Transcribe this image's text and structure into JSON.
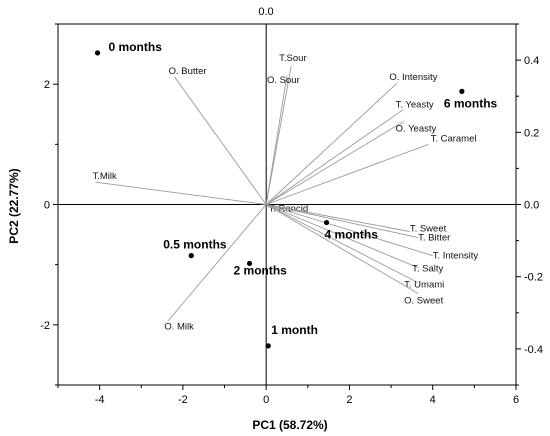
{
  "chart_data": {
    "type": "scatter",
    "subtype": "pca-biplot",
    "xlabel": "PC1 (58.72%)",
    "ylabel": "PC2 (22.77%)",
    "top_axis_label": "0.0",
    "xlim": [
      -5,
      6
    ],
    "ylim": [
      -3,
      3
    ],
    "right_axis_lim": [
      -0.5,
      0.5
    ],
    "x_ticks": [
      -4,
      -2,
      0,
      2,
      4,
      6
    ],
    "y_ticks": [
      -2,
      0,
      2
    ],
    "right_ticks": [
      -0.4,
      -0.2,
      0.0,
      0.2,
      0.4
    ],
    "right_tick_labels": [
      "-0.4",
      "-0.2",
      "0.0",
      "0.2",
      "0.4"
    ],
    "grid": false,
    "scores": [
      {
        "label": "0 months",
        "x": -4.05,
        "y": 2.52
      },
      {
        "label": "0.5 months",
        "x": -1.8,
        "y": -0.85
      },
      {
        "label": "2 months",
        "x": -0.4,
        "y": -0.98
      },
      {
        "label": "1 month",
        "x": 0.05,
        "y": -2.35
      },
      {
        "label": "4 months",
        "x": 1.45,
        "y": -0.3
      },
      {
        "label": "6 months",
        "x": 4.7,
        "y": 1.88
      }
    ],
    "loadings": [
      {
        "label": "O. Butter",
        "x": -2.2,
        "y": 2.12
      },
      {
        "label": "T.Sour",
        "x": 0.6,
        "y": 2.3
      },
      {
        "label": "O. Sour",
        "x": 0.5,
        "y": 2.15
      },
      {
        "label": "O. Intensity",
        "x": 3.15,
        "y": 2.02
      },
      {
        "label": "T. Yeasty",
        "x": 3.3,
        "y": 1.58
      },
      {
        "label": "O. Yeasty",
        "x": 3.3,
        "y": 1.38
      },
      {
        "label": "T. Caramel",
        "x": 3.9,
        "y": 1.0
      },
      {
        "label": "T.Milk",
        "x": -4.1,
        "y": 0.37
      },
      {
        "label": "T. Rancid",
        "x": 0.08,
        "y": -0.05
      },
      {
        "label": "T. Sweet",
        "x": 3.45,
        "y": -0.45
      },
      {
        "label": "T. Bitter",
        "x": 3.65,
        "y": -0.55
      },
      {
        "label": "T. Intensity",
        "x": 4.0,
        "y": -0.85
      },
      {
        "label": "T. Salty",
        "x": 3.65,
        "y": -1.05
      },
      {
        "label": "T. Umami",
        "x": 3.65,
        "y": -1.3
      },
      {
        "label": "O. Sweet",
        "x": 3.65,
        "y": -1.48
      },
      {
        "label": "O. Milk",
        "x": -2.35,
        "y": -1.93
      }
    ]
  },
  "colors": {
    "axis": "#000000",
    "loading_line": "#9a9a9a",
    "point": "#000000"
  }
}
